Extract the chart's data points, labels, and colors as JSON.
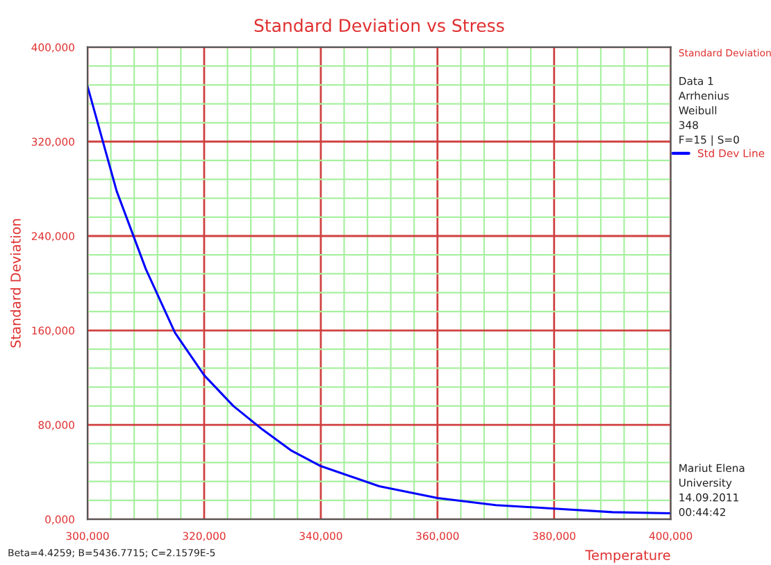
{
  "chart_data": {
    "type": "line",
    "title": "Standard Deviation vs Stress",
    "xlabel": "Temperature",
    "ylabel": "Standard Deviation",
    "legend_title": "Standard Deviation",
    "x": [
      300000,
      305000,
      310000,
      315000,
      320000,
      325000,
      330000,
      335000,
      340000,
      350000,
      360000,
      370000,
      380000,
      390000,
      400000
    ],
    "series": [
      {
        "name": "Std Dev Line",
        "color": "#0000ff",
        "values": [
          367000,
          278000,
          212000,
          158000,
          122000,
          96000,
          76000,
          58000,
          45000,
          28000,
          18000,
          12000,
          9000,
          6000,
          5000
        ]
      }
    ],
    "xlim": [
      300000,
      400000
    ],
    "ylim": [
      0,
      400000
    ],
    "xticks": [
      {
        "value": 300000,
        "label": "300,000"
      },
      {
        "value": 304000,
        "label": null
      },
      {
        "value": 308000,
        "label": null
      },
      {
        "value": 312000,
        "label": null
      },
      {
        "value": 316000,
        "label": null
      },
      {
        "value": 320000,
        "label": "320,000"
      },
      {
        "value": 324000,
        "label": null
      },
      {
        "value": 328000,
        "label": null
      },
      {
        "value": 332000,
        "label": null
      },
      {
        "value": 336000,
        "label": null
      },
      {
        "value": 340000,
        "label": "340,000"
      },
      {
        "value": 344000,
        "label": null
      },
      {
        "value": 348000,
        "label": null
      },
      {
        "value": 352000,
        "label": null
      },
      {
        "value": 356000,
        "label": null
      },
      {
        "value": 360000,
        "label": "360,000"
      },
      {
        "value": 364000,
        "label": null
      },
      {
        "value": 368000,
        "label": null
      },
      {
        "value": 372000,
        "label": null
      },
      {
        "value": 376000,
        "label": null
      },
      {
        "value": 380000,
        "label": "380,000"
      },
      {
        "value": 384000,
        "label": null
      },
      {
        "value": 388000,
        "label": null
      },
      {
        "value": 392000,
        "label": null
      },
      {
        "value": 396000,
        "label": null
      },
      {
        "value": 400000,
        "label": "400,000"
      }
    ],
    "yticks": [
      {
        "value": 0,
        "label": "0,000"
      },
      {
        "value": 16000,
        "label": null
      },
      {
        "value": 32000,
        "label": null
      },
      {
        "value": 48000,
        "label": null
      },
      {
        "value": 64000,
        "label": null
      },
      {
        "value": 80000,
        "label": "80,000"
      },
      {
        "value": 96000,
        "label": null
      },
      {
        "value": 112000,
        "label": null
      },
      {
        "value": 128000,
        "label": null
      },
      {
        "value": 144000,
        "label": null
      },
      {
        "value": 160000,
        "label": "160,000"
      },
      {
        "value": 176000,
        "label": null
      },
      {
        "value": 192000,
        "label": null
      },
      {
        "value": 208000,
        "label": null
      },
      {
        "value": 224000,
        "label": null
      },
      {
        "value": 240000,
        "label": "240,000"
      },
      {
        "value": 256000,
        "label": null
      },
      {
        "value": 272000,
        "label": null
      },
      {
        "value": 288000,
        "label": null
      },
      {
        "value": 304000,
        "label": null
      },
      {
        "value": 320000,
        "label": "320,000"
      },
      {
        "value": 336000,
        "label": null
      },
      {
        "value": 352000,
        "label": null
      },
      {
        "value": 368000,
        "label": null
      },
      {
        "value": 384000,
        "label": null
      },
      {
        "value": 400000,
        "label": "400,000"
      }
    ],
    "grid": true,
    "legend": "right",
    "marker": "none",
    "line_style": "solid",
    "annotations": [
      "Data 1",
      "Arrhenius",
      "Weibull",
      "348",
      "F=15 | S=0",
      "Mariut Elena",
      "University",
      "14.09.2011",
      "00:44:42",
      "Beta=4.4259; B=5436.7715; C=2.1579E-5"
    ]
  }
}
